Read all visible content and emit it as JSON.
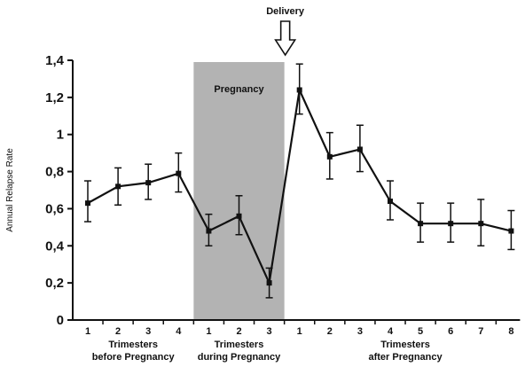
{
  "chart_data": {
    "type": "line",
    "ylabel": "Annual Relapse Rate",
    "ylim": [
      0,
      1.4
    ],
    "yticks": [
      "0",
      "0,2",
      "0,4",
      "0,6",
      "0,8",
      "1",
      "1,2",
      "1,4"
    ],
    "grid": false,
    "legend": "none",
    "groups": [
      {
        "label_line1": "Trimesters",
        "label_line2": "before Pregnancy",
        "ticks": [
          "1",
          "2",
          "3",
          "4"
        ]
      },
      {
        "label_line1": "Trimesters",
        "label_line2": "during Pregnancy",
        "ticks": [
          "1",
          "2",
          "3"
        ]
      },
      {
        "label_line1": "Trimesters",
        "label_line2": "after Pregnancy",
        "ticks": [
          "1",
          "2",
          "3",
          "4",
          "5",
          "6",
          "7",
          "8"
        ]
      }
    ],
    "series": [
      {
        "values": [
          0.63,
          0.72,
          0.74,
          0.79,
          0.48,
          0.56,
          0.2,
          1.24,
          0.88,
          0.92,
          0.64,
          0.52,
          0.52,
          0.52,
          0.48
        ],
        "err_upper": [
          0.75,
          0.82,
          0.84,
          0.9,
          0.57,
          0.67,
          0.28,
          1.38,
          1.01,
          1.05,
          0.75,
          0.63,
          0.63,
          0.65,
          0.59
        ],
        "err_lower": [
          0.53,
          0.62,
          0.65,
          0.69,
          0.4,
          0.46,
          0.12,
          1.11,
          0.76,
          0.8,
          0.54,
          0.42,
          0.42,
          0.4,
          0.38
        ]
      }
    ],
    "shaded_region_label": "Pregnancy",
    "arrow_annotation": "Delivery",
    "colors": {
      "line": "#111111",
      "shade": "#b3b3b3"
    }
  }
}
